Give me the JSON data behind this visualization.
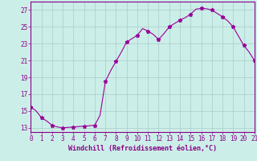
{
  "x": [
    0,
    0.5,
    1,
    1.5,
    2,
    2.5,
    3,
    3.5,
    4,
    4.5,
    5,
    5.5,
    6,
    6.5,
    7,
    7.5,
    8,
    8.5,
    9,
    9.5,
    10,
    10.5,
    11,
    11.5,
    12,
    12.5,
    13,
    13.5,
    14,
    14.5,
    15,
    15.5,
    16,
    16.5,
    17,
    17.5,
    18,
    18.5,
    19,
    19.5,
    20,
    20.5,
    21
  ],
  "y": [
    15.5,
    15.0,
    14.2,
    13.8,
    13.3,
    13.1,
    13.0,
    13.05,
    13.1,
    13.15,
    13.2,
    13.25,
    13.3,
    14.5,
    18.5,
    19.8,
    20.9,
    22.0,
    23.2,
    23.6,
    24.0,
    24.8,
    24.5,
    24.1,
    23.5,
    24.2,
    25.0,
    25.4,
    25.8,
    26.1,
    26.5,
    27.1,
    27.2,
    27.15,
    27.0,
    26.6,
    26.2,
    25.7,
    25.0,
    23.9,
    22.8,
    22.0,
    21.0
  ],
  "marker_x": [
    0,
    1,
    2,
    3,
    4,
    5,
    6,
    7,
    8,
    9,
    10,
    11,
    12,
    13,
    14,
    15,
    16,
    17,
    18,
    19,
    20,
    21
  ],
  "marker_y": [
    15.5,
    14.2,
    13.3,
    13.0,
    13.1,
    13.2,
    13.3,
    18.5,
    20.9,
    23.2,
    24.0,
    24.5,
    23.5,
    25.0,
    25.8,
    26.5,
    27.2,
    27.0,
    26.2,
    25.0,
    22.8,
    21.0
  ],
  "line_color": "#990099",
  "marker": "*",
  "bg_color": "#cceee8",
  "grid_color": "#aacccc",
  "xlabel": "Windchill (Refroidissement éolien,°C)",
  "xlabel_color": "#880088",
  "ylabel_ticks": [
    13,
    15,
    17,
    19,
    21,
    23,
    25,
    27
  ],
  "xtick_labels": [
    "0",
    "1",
    "2",
    "3",
    "4",
    "5",
    "6",
    "7",
    "8",
    "9",
    "10",
    "11",
    "12",
    "13",
    "14",
    "15",
    "16",
    "17",
    "18",
    "19",
    "20",
    "21"
  ],
  "xlim": [
    0,
    21
  ],
  "ylim": [
    12.5,
    28.0
  ],
  "tick_color": "#880088",
  "axis_color": "#880088",
  "tick_fontsize": 5.5,
  "xlabel_fontsize": 6.0
}
